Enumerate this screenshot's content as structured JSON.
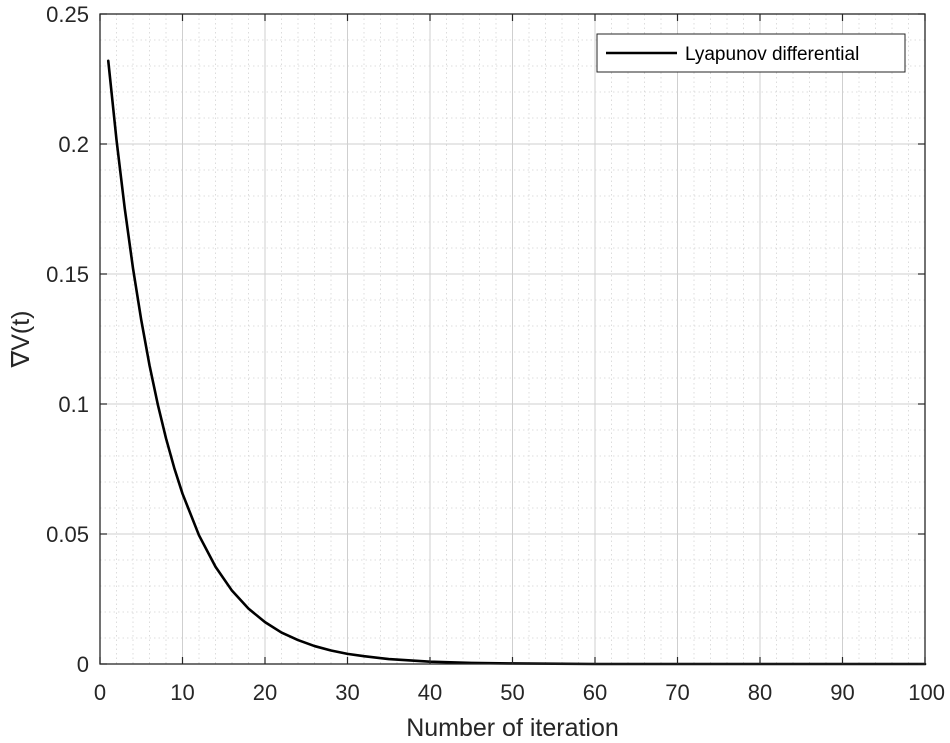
{
  "chart_data": {
    "type": "line",
    "title": "",
    "xlabel": "Number of iteration",
    "ylabel": "∇V(t)",
    "xlim": [
      0,
      100
    ],
    "ylim": [
      0,
      0.25
    ],
    "x_ticks": [
      0,
      10,
      20,
      30,
      40,
      50,
      60,
      70,
      80,
      90,
      100
    ],
    "x_tick_labels": [
      "0",
      "10",
      "20",
      "30",
      "40",
      "50",
      "60",
      "70",
      "80",
      "90",
      "100"
    ],
    "y_ticks": [
      0,
      0.05,
      0.1,
      0.15,
      0.2,
      0.25
    ],
    "y_tick_labels": [
      "0",
      "0.05",
      "0.1",
      "0.15",
      "0.2",
      "0.25"
    ],
    "grid": true,
    "minor_grid": true,
    "legend_position": "top-right",
    "series": [
      {
        "name": "Lyapunov differential",
        "color": "#000000",
        "x": [
          1,
          2,
          3,
          4,
          5,
          6,
          7,
          8,
          9,
          10,
          12,
          14,
          16,
          18,
          20,
          22,
          24,
          26,
          28,
          30,
          32,
          35,
          40,
          45,
          50,
          60,
          70,
          80,
          90,
          100
        ],
        "y": [
          0.232,
          0.2016,
          0.1752,
          0.1522,
          0.1323,
          0.1149,
          0.0999,
          0.0868,
          0.0754,
          0.0655,
          0.0495,
          0.0374,
          0.0282,
          0.0213,
          0.0161,
          0.0121,
          0.0092,
          0.0069,
          0.0052,
          0.0039,
          0.003,
          0.0019,
          0.0009,
          0.0004,
          0.0002,
          0.0,
          0.0,
          0.0,
          0.0,
          0.0
        ]
      }
    ]
  }
}
